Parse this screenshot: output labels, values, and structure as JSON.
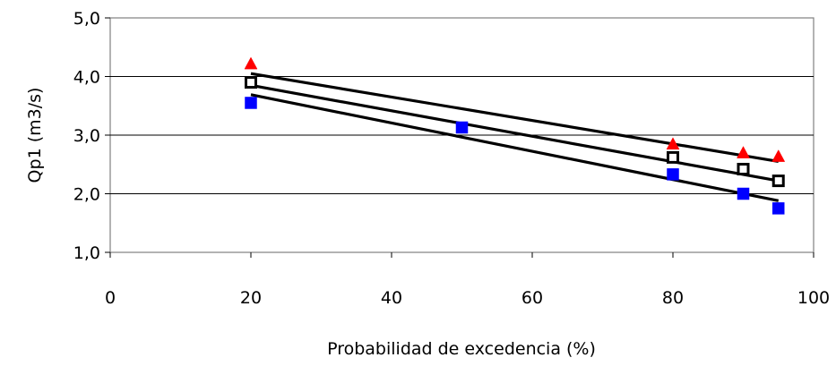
{
  "chart_data": {
    "type": "scatter",
    "title": "",
    "xlabel": "Probabilidad de excedencia (%)",
    "ylabel": "Qp1 (m3/s)",
    "xlim": [
      0,
      100
    ],
    "ylim": [
      1.0,
      5.0
    ],
    "x_ticks": [
      0,
      20,
      40,
      60,
      80,
      100
    ],
    "x_tick_labels": [
      "0",
      "20",
      "40",
      "60",
      "80",
      "100"
    ],
    "y_ticks": [
      1.0,
      2.0,
      3.0,
      4.0,
      5.0
    ],
    "y_tick_labels": [
      "1,0",
      "2,0",
      "3,0",
      "4,0",
      "5,0"
    ],
    "grid": "horizontal",
    "legend": "none",
    "series": [
      {
        "marker": "triangle",
        "color": "#ff0000",
        "x": [
          20,
          80,
          90,
          95
        ],
        "y": [
          4.22,
          2.85,
          2.7,
          2.64
        ],
        "trendline": {
          "x": [
            20,
            95
          ],
          "y": [
            4.05,
            2.55
          ]
        }
      },
      {
        "marker": "hollow-square",
        "color": "#000000",
        "x": [
          20,
          80,
          90,
          95
        ],
        "y": [
          3.9,
          2.62,
          2.42,
          2.22
        ],
        "trendline": {
          "x": [
            20,
            95
          ],
          "y": [
            3.85,
            2.22
          ]
        }
      },
      {
        "marker": "square",
        "color": "#0000ff",
        "x": [
          20,
          50,
          80,
          90,
          95
        ],
        "y": [
          3.55,
          3.13,
          2.33,
          2.0,
          1.75
        ],
        "trendline": {
          "x": [
            20,
            95
          ],
          "y": [
            3.69,
            1.88
          ]
        }
      }
    ]
  }
}
